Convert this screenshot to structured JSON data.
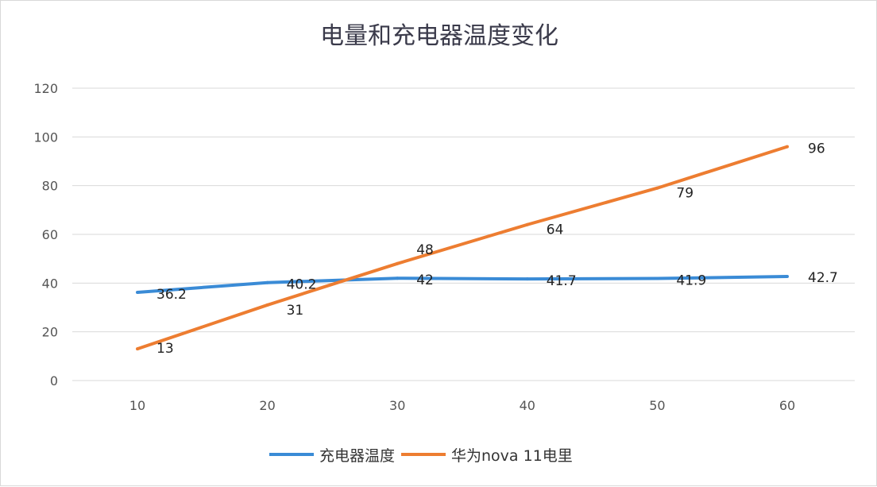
{
  "chart_data": {
    "type": "line",
    "title": "电量和充电器温度变化",
    "xlabel": "",
    "ylabel": "",
    "x": [
      10,
      20,
      30,
      40,
      50,
      60
    ],
    "ylim": [
      0,
      120
    ],
    "yticks": [
      0,
      20,
      40,
      60,
      80,
      100,
      120
    ],
    "grid": true,
    "legend_position": "bottom",
    "series": [
      {
        "name": "充电器温度",
        "color": "#3a8bd6",
        "values": [
          36.2,
          40.2,
          42,
          41.7,
          41.9,
          42.7
        ],
        "labels": [
          "36.2",
          "40.2",
          "42",
          "41.7",
          "41.9",
          "42.7"
        ]
      },
      {
        "name": "华为nova 11电里",
        "color": "#ed7d31",
        "values": [
          13,
          31,
          48,
          64,
          79,
          96
        ],
        "labels": [
          "13",
          "31",
          "48",
          "64",
          "79",
          "96"
        ]
      }
    ]
  }
}
